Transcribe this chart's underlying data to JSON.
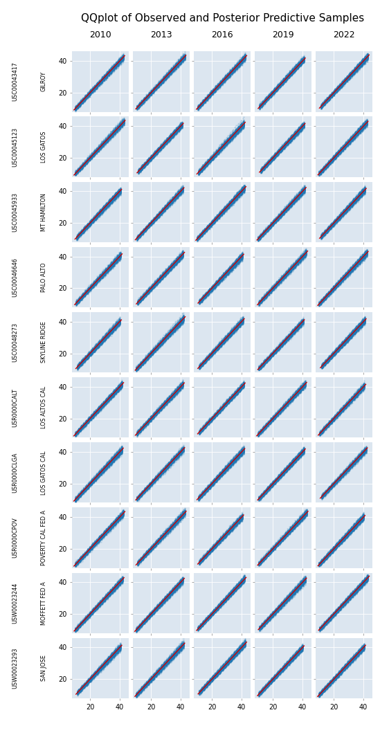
{
  "title": "QQplot of Observed and Posterior Predictive Samples",
  "columns": [
    "2010",
    "2013",
    "2016",
    "2019",
    "2022"
  ],
  "rows": [
    {
      "station_id": "USC00043417",
      "station_name": "GILROY"
    },
    {
      "station_id": "USC00045123",
      "station_name": "LOS GATOS"
    },
    {
      "station_id": "USC00045933",
      "station_name": "MT HAMILTON"
    },
    {
      "station_id": "USC00046646",
      "station_name": "PALO ALTO"
    },
    {
      "station_id": "USC00048273",
      "station_name": "SKYLINE RIDGE"
    },
    {
      "station_id": "USR0000CALT",
      "station_name": "LOS ALTOS CAL"
    },
    {
      "station_id": "USR0000CLGA",
      "station_name": "LOS GATOS CAL"
    },
    {
      "station_id": "USR0000CPOV",
      "station_name": "POVERTY CAL FED A"
    },
    {
      "station_id": "USW00023244",
      "station_name": "MOFFETT FED A"
    },
    {
      "station_id": "USW00023293",
      "station_name": "SAN JOSE"
    }
  ],
  "xlim": [
    8,
    46
  ],
  "ylim": [
    8,
    46
  ],
  "xticks": [
    20,
    40
  ],
  "yticks": [
    20,
    40
  ],
  "blue_color": "#1f77b4",
  "red_color": "#cc0000",
  "bg_color": "#dce6f0",
  "fig_bg": "#ffffff",
  "title_fontsize": 11,
  "tick_fontsize": 7,
  "col_fontsize": 9,
  "row_id_fontsize": 5.8,
  "row_name_fontsize": 5.8
}
